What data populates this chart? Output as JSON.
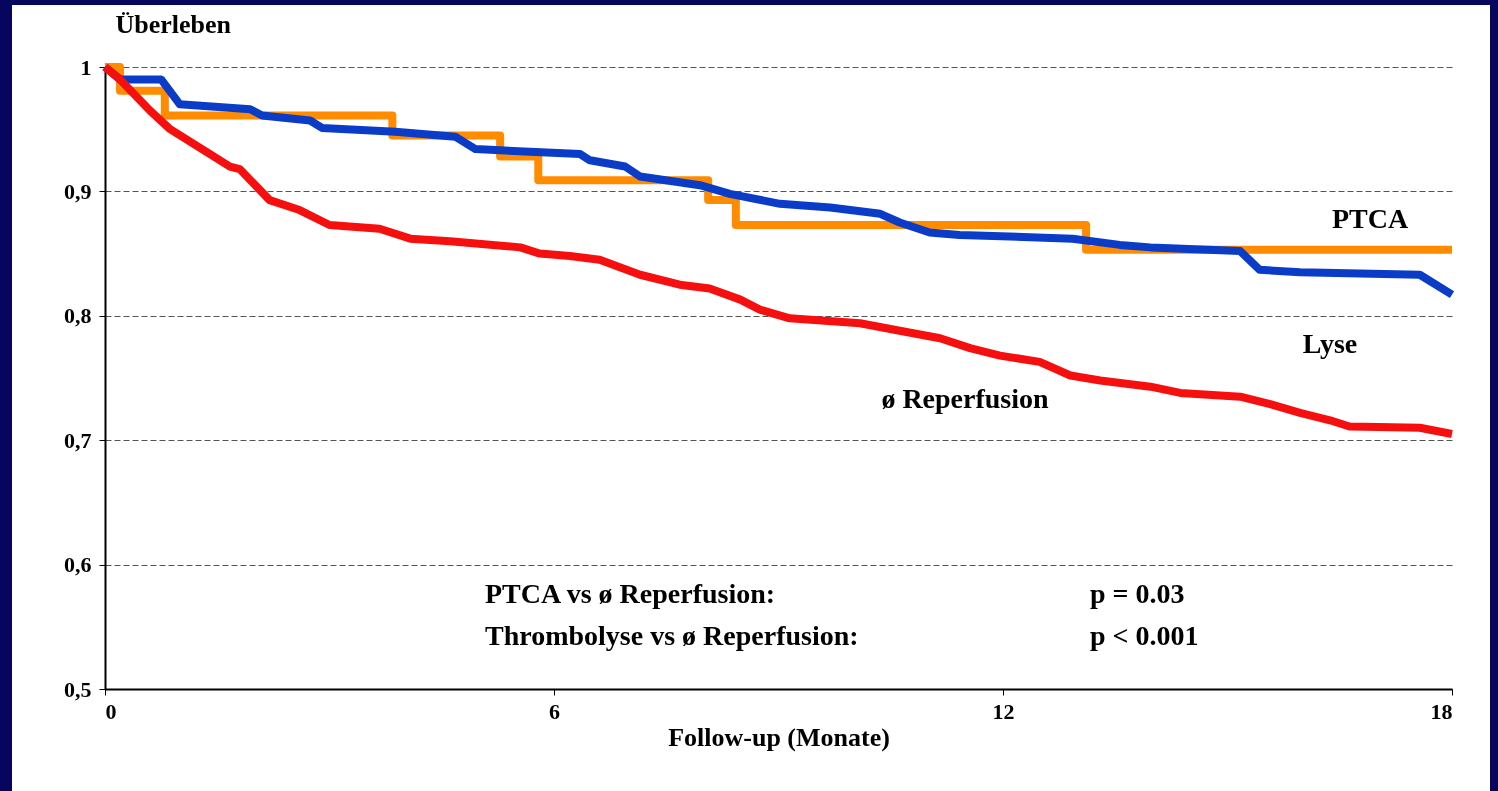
{
  "chart_data": {
    "type": "line",
    "ylabel": "Überleben",
    "xlabel": "Follow-up (Monate)",
    "xlim": [
      0,
      18
    ],
    "xticks": [
      0,
      6,
      12,
      18
    ],
    "ylim": [
      0.5,
      1
    ],
    "yticks": [
      {
        "value": 0.5,
        "label": "0,5"
      },
      {
        "value": 0.6,
        "label": "0,6"
      },
      {
        "value": 0.7,
        "label": "0,7"
      },
      {
        "value": 0.8,
        "label": "0,8"
      },
      {
        "value": 0.9,
        "label": "0,9"
      },
      {
        "value": 1,
        "label": "1"
      }
    ],
    "grid": "y",
    "line_style": "solid",
    "marker": "none",
    "series": [
      {
        "name": "PTCA",
        "type": "step",
        "color": "#ff8c00",
        "x": [
          0,
          0.2,
          0.8,
          3.84,
          5.28,
          5.79,
          8.06,
          8.43,
          13.11,
          18
        ],
        "values": [
          1,
          0.981,
          0.961,
          0.945,
          0.928,
          0.909,
          0.893,
          0.873,
          0.853,
          0.853
        ]
      },
      {
        "name": "Lyse",
        "color": "#0a3cc8",
        "x": [
          0,
          0.2,
          0.75,
          1.0,
          1.94,
          2.1,
          2.74,
          2.9,
          3.88,
          4.68,
          4.95,
          6.35,
          6.48,
          6.95,
          7.15,
          7.95,
          8.35,
          9.02,
          9.69,
          10.36,
          10.62,
          11.02,
          11.42,
          12.93,
          13.56,
          13.97,
          15.17,
          15.43,
          15.97,
          17.57,
          18
        ],
        "values": [
          1,
          0.99,
          0.99,
          0.97,
          0.966,
          0.961,
          0.957,
          0.951,
          0.948,
          0.944,
          0.934,
          0.93,
          0.925,
          0.92,
          0.912,
          0.905,
          0.898,
          0.89,
          0.887,
          0.882,
          0.875,
          0.867,
          0.865,
          0.862,
          0.857,
          0.855,
          0.852,
          0.837,
          0.835,
          0.833,
          0.817
        ]
      },
      {
        "name": "ø Reperfusion",
        "color": "#f50f0f",
        "x": [
          0,
          0.2,
          0.6,
          0.87,
          1.27,
          1.67,
          1.8,
          2.2,
          2.6,
          3.0,
          3.67,
          4.08,
          4.61,
          5.55,
          5.81,
          6.21,
          6.61,
          7.15,
          7.68,
          8.08,
          8.49,
          8.75,
          9.15,
          10.09,
          10.62,
          11.16,
          11.56,
          11.96,
          12.49,
          12.9,
          13.3,
          13.97,
          14.37,
          15.17,
          15.57,
          15.97,
          16.37,
          16.63,
          17.57,
          18
        ],
        "values": [
          1,
          0.99,
          0.965,
          0.95,
          0.935,
          0.92,
          0.918,
          0.893,
          0.885,
          0.873,
          0.87,
          0.862,
          0.86,
          0.855,
          0.85,
          0.848,
          0.845,
          0.833,
          0.825,
          0.822,
          0.813,
          0.805,
          0.798,
          0.794,
          0.788,
          0.782,
          0.774,
          0.768,
          0.763,
          0.752,
          0.748,
          0.743,
          0.738,
          0.735,
          0.729,
          0.722,
          0.716,
          0.711,
          0.71,
          0.705
        ]
      }
    ],
    "annotations": [
      "PTCA vs ø Reperfusion:",
      "p = 0.03",
      "Thrombolyse vs ø Reperfusion:",
      "p < 0.001"
    ]
  }
}
